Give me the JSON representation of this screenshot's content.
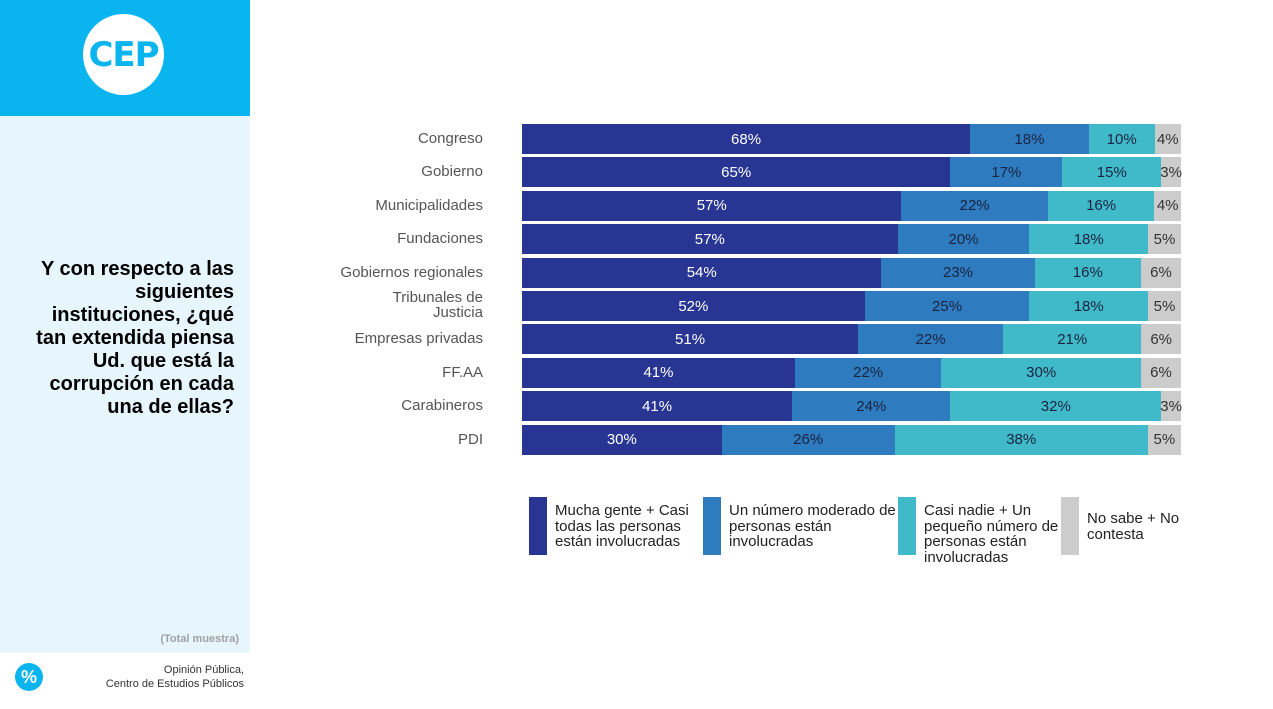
{
  "brand": {
    "logo_text": "CEP",
    "accent": "#0ab4ee"
  },
  "question": "Y con respecto a las siguientes instituciones, ¿qué tan extendida piensa Ud. que está la corrupción en cada una de ellas?",
  "sample_note": "(Total muestra)",
  "footer": {
    "line1": "Opinión Pública,",
    "line2": "Centro de Estudios Públicos",
    "icon": "percent-icon"
  },
  "chart_data": {
    "type": "bar",
    "orientation": "horizontal",
    "stacked": true,
    "xlim": [
      0,
      100
    ],
    "categories": [
      "Congreso",
      "Gobierno",
      "Municipalidades",
      "Fundaciones",
      "Gobiernos regionales",
      "Tribunales de Justicia",
      "Empresas privadas",
      "FF.AA",
      "Carabineros",
      "PDI"
    ],
    "series": [
      {
        "name": "Mucha gente + Casi todas las personas están involucradas",
        "color": "#283593",
        "text_color": "#ffffff",
        "values": [
          68,
          65,
          57,
          57,
          54,
          52,
          51,
          41,
          41,
          30
        ]
      },
      {
        "name": "Un número moderado de personas están involucradas",
        "color": "#2e7bbf",
        "text_color": "#1a2440",
        "values": [
          18,
          17,
          22,
          20,
          23,
          25,
          22,
          22,
          24,
          26
        ]
      },
      {
        "name": "Casi nadie + Un pequeño número de personas están involucradas",
        "color": "#40b9c9",
        "text_color": "#1a2440",
        "values": [
          10,
          15,
          16,
          18,
          16,
          18,
          21,
          30,
          32,
          38
        ]
      },
      {
        "name": "No sabe + No contesta",
        "color": "#cccccc",
        "text_color": "#333333",
        "values": [
          4,
          3,
          4,
          5,
          6,
          5,
          6,
          6,
          3,
          5
        ]
      }
    ],
    "value_suffix": "%",
    "legend_position": "bottom"
  }
}
